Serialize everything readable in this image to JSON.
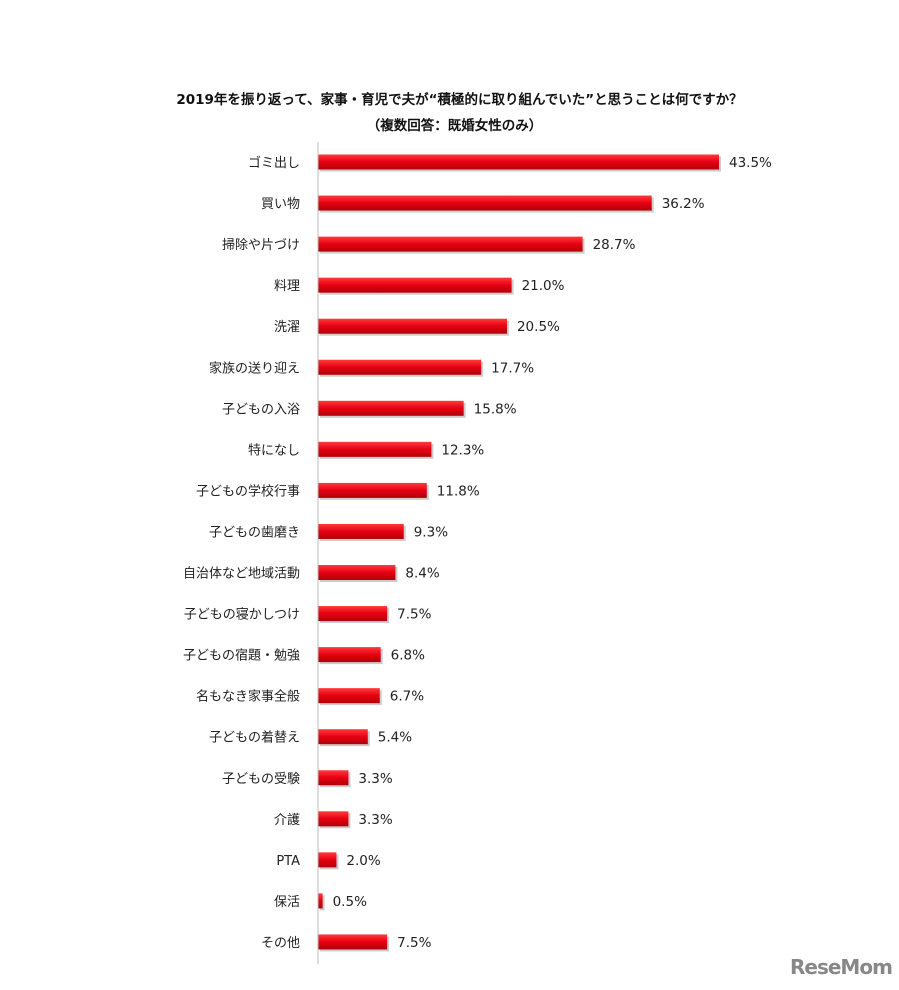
{
  "chart_data": {
    "type": "bar",
    "orientation": "horizontal",
    "title": "2019年を振り返って、家事・育児で夫が“積極的に取り組んでいた”と思うことは何ですか？",
    "subtitle": "（複数回答：既婚女性のみ）",
    "categories": [
      "ゴミ出し",
      "買い物",
      "掃除や片づけ",
      "料理",
      "洗濯",
      "家族の送り迎え",
      "子どもの入浴",
      "特になし",
      "子どもの学校行事",
      "子どもの歯磨き",
      "自治体など地域活動",
      "子どもの寝かしつけ",
      "子どもの宿題・勉強",
      "名もなき家事全般",
      "子どもの着替え",
      "子どもの受験",
      "介護",
      "PTA",
      "保活",
      "その他"
    ],
    "values": [
      43.5,
      36.2,
      28.7,
      21.0,
      20.5,
      17.7,
      15.8,
      12.3,
      11.8,
      9.3,
      8.4,
      7.5,
      6.8,
      6.7,
      5.4,
      3.3,
      3.3,
      2.0,
      0.5,
      7.5
    ],
    "value_labels": [
      "43.5%",
      "36.2%",
      "28.7%",
      "21.0%",
      "20.5%",
      "17.7%",
      "15.8%",
      "12.3%",
      "11.8%",
      "9.3%",
      "8.4%",
      "7.5%",
      "6.8%",
      "6.7%",
      "5.4%",
      "3.3%",
      "3.3%",
      "2.0%",
      "0.5%",
      "7.5%"
    ],
    "unit": "%",
    "xlim": [
      0,
      45
    ],
    "grid": false,
    "bar_color": "#e60012"
  },
  "watermark": "ReseMom"
}
